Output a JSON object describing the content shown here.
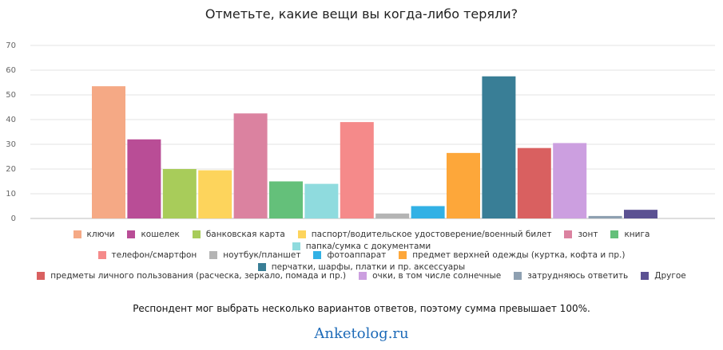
{
  "chart_data": {
    "type": "bar",
    "title": "Отметьте, какие вещи вы когда-либо теряли?",
    "xlabel": "",
    "ylabel": "",
    "ylim": [
      0,
      70
    ],
    "yticks": [
      0,
      10,
      20,
      30,
      40,
      50,
      60,
      70
    ],
    "grid": true,
    "legend_position": "bottom",
    "series": [
      {
        "name": "ключи",
        "value": 53.5,
        "color": "#f5a985"
      },
      {
        "name": "кошелек",
        "value": 32,
        "color": "#b94d96"
      },
      {
        "name": "банковская карта",
        "value": 20,
        "color": "#a8cc5a"
      },
      {
        "name": "паспорт/водительское удостоверение/военный билет",
        "value": 19.5,
        "color": "#fdd45c"
      },
      {
        "name": "зонт",
        "value": 42.5,
        "color": "#db82a0"
      },
      {
        "name": "книга",
        "value": 15,
        "color": "#64c07a"
      },
      {
        "name": "папка/сумка с документами",
        "value": 14,
        "color": "#8fdbde"
      },
      {
        "name": "телефон/смартфон",
        "value": 39,
        "color": "#f58a8a"
      },
      {
        "name": "ноутбук/планшет",
        "value": 2,
        "color": "#b4b4b4"
      },
      {
        "name": "фотоаппарат",
        "value": 5,
        "color": "#32b1e5"
      },
      {
        "name": "предмет верхней одежды (куртка, кофта и пр.)",
        "value": 26.5,
        "color": "#fda73a"
      },
      {
        "name": "перчатки, шарфы, платки и пр. аксессуары",
        "value": 57.5,
        "color": "#397e96"
      },
      {
        "name": "предметы личного пользования (расческа, зеркало, помада и пр.)",
        "value": 28.5,
        "color": "#d96060"
      },
      {
        "name": "очки, в том числе солнечные",
        "value": 30.5,
        "color": "#cc9fe0"
      },
      {
        "name": "затрудняюсь ответить",
        "value": 1,
        "color": "#8ea0b1"
      },
      {
        "name": "Другое",
        "value": 3.5,
        "color": "#5b5192"
      }
    ]
  },
  "legend_rows": [
    [
      0,
      1,
      2,
      3,
      4,
      5,
      6
    ],
    [
      7,
      8,
      9,
      10,
      11
    ],
    [
      12,
      13,
      14,
      15
    ]
  ],
  "footnote": "Респондент мог выбрать несколько вариантов ответов, поэтому сумма превышает 100%.",
  "site_name": "Anketolog.ru"
}
